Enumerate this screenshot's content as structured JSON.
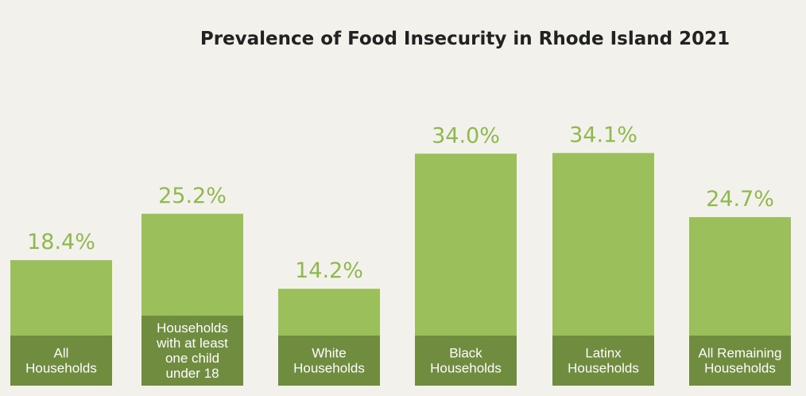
{
  "chart_data": {
    "type": "bar",
    "title": "Prevalence of Food Insecurity in Rhode Island 2021",
    "categories": [
      [
        "All",
        "Households"
      ],
      [
        "Households",
        "with at least",
        "one child",
        "under 18"
      ],
      [
        "White",
        "Households"
      ],
      [
        "Black",
        "Households"
      ],
      [
        "Latinx",
        "Households"
      ],
      [
        "All Remaining",
        "Households"
      ]
    ],
    "values": [
      18.4,
      25.2,
      14.2,
      34.0,
      34.1,
      24.7
    ],
    "value_labels": [
      "18.4%",
      "25.2%",
      "14.2%",
      "34.0%",
      "34.1%",
      "24.7%"
    ],
    "ylim": [
      0,
      40
    ],
    "xlabel": "",
    "ylabel": "",
    "grid": false,
    "legend": "none",
    "colors": {
      "bar": "#9bbf5a",
      "label_band": "#6f8c3f",
      "value_text": "#8fb84e",
      "title_text": "#222222",
      "background": "#f3f1ec"
    }
  }
}
